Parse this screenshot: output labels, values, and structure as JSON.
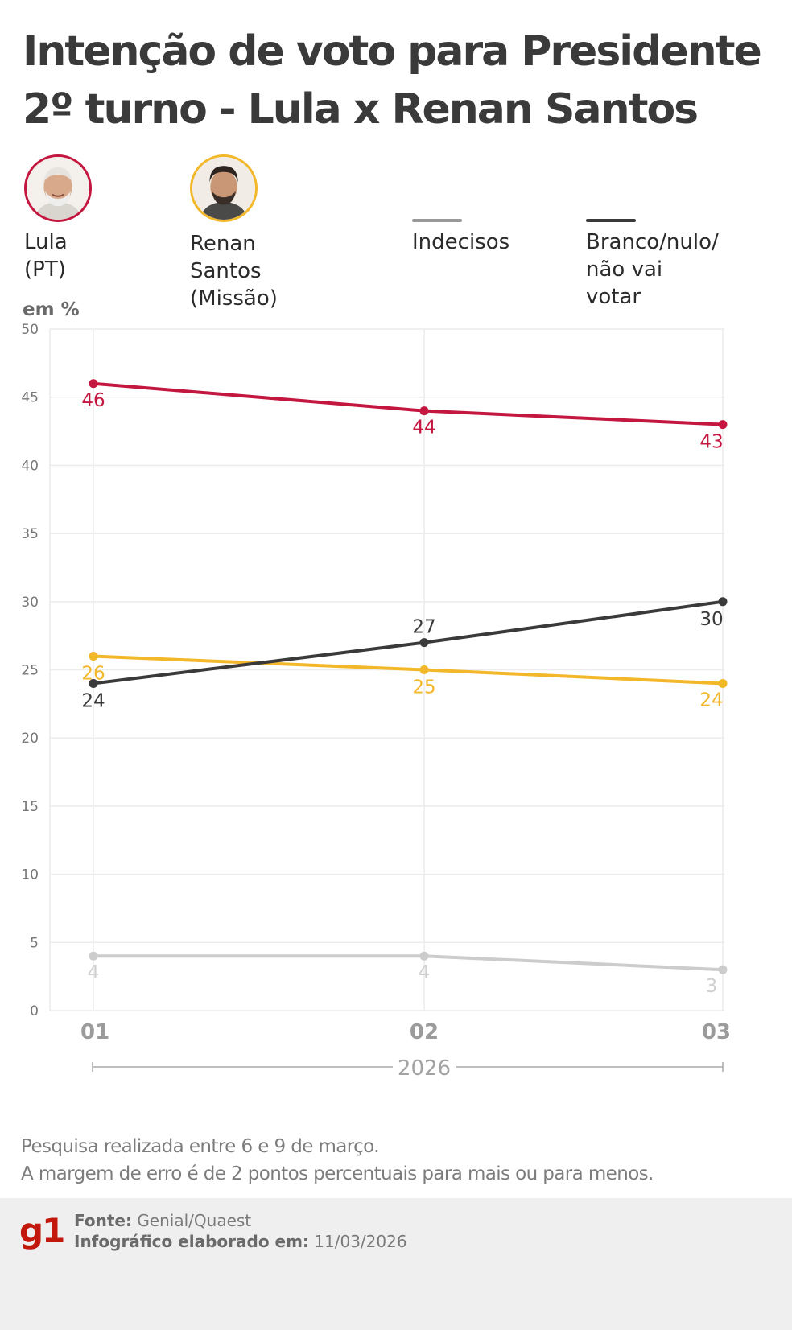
{
  "title": {
    "line1": "Intenção de voto para Presidente",
    "line2": "2º turno - Lula x Renan Santos"
  },
  "legend": [
    {
      "label": "Lula (PT)",
      "color": "#c4173f",
      "icon": "lula-photo-icon"
    },
    {
      "label": "Renan Santos\n(Missão)",
      "color": "#f3b72a",
      "icon": "renan-photo-icon"
    },
    {
      "label": "Indecisos",
      "color": "#999999",
      "icon": "line-swatch"
    },
    {
      "label": "Branco/nulo/\nnão vai votar",
      "color": "#3a3a3a",
      "icon": "line-swatch"
    }
  ],
  "unit_label": "em %",
  "chart_data": {
    "type": "line",
    "title": "Intenção de voto para Presidente 2º turno - Lula x Renan Santos",
    "xlabel": "2026",
    "ylabel": "em %",
    "x": [
      "01",
      "02",
      "03"
    ],
    "ylim": [
      0,
      50
    ],
    "yticks": [
      0,
      5,
      10,
      15,
      20,
      25,
      30,
      35,
      40,
      45,
      50
    ],
    "grid": true,
    "series": [
      {
        "name": "Lula (PT)",
        "color": "#c4173f",
        "values": [
          46,
          44,
          43
        ]
      },
      {
        "name": "Renan Santos (Missão)",
        "color": "#f3b72a",
        "values": [
          26,
          25,
          24
        ]
      },
      {
        "name": "Branco/nulo/não vai votar",
        "color": "#3a3a3a",
        "values": [
          24,
          27,
          30
        ]
      },
      {
        "name": "Indecisos",
        "color": "#cccccc",
        "values": [
          4,
          4,
          3
        ]
      }
    ]
  },
  "notes": {
    "line1": "Pesquisa realizada entre 6 e 9 de março.",
    "line2": "A margem de erro é de 2 pontos percentuais para mais ou para menos."
  },
  "footer": {
    "logo": "g1",
    "source_label": "Fonte:",
    "source_value": "Genial/Quaest",
    "date_label": "Infográfico elaborado em:",
    "date_value": "11/03/2026"
  }
}
